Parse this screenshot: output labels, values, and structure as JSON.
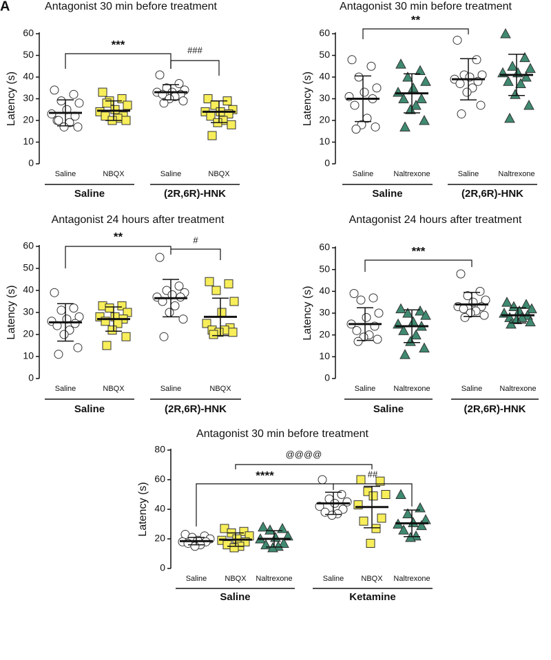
{
  "panel_label": "A",
  "chart_data": [
    {
      "type": "strip",
      "title": "Antagonist 30 min before treatment",
      "y_label": "Latency (s)",
      "ylim": [
        0,
        60
      ],
      "yticks": [
        0,
        10,
        20,
        30,
        40,
        50,
        60
      ],
      "groups": [
        {
          "name": "Saline",
          "categories": [
            {
              "name": "Saline",
              "marker": "circle",
              "color": "#ffffff",
              "values": [
                34,
                32,
                29,
                28,
                25,
                23,
                22,
                20,
                19,
                17,
                17,
                20
              ],
              "mean": 23.5,
              "sd": 6
            },
            {
              "name": "NBQX",
              "marker": "square",
              "color": "#f7ee5a",
              "values": [
                33,
                30,
                29,
                27,
                25,
                24,
                22,
                22,
                21,
                20,
                20,
                28
              ],
              "mean": 24.5,
              "sd": 4.5
            }
          ]
        },
        {
          "name": "(2R,6R)-HNK",
          "categories": [
            {
              "name": "Saline",
              "marker": "circle",
              "color": "#ffffff",
              "values": [
                41,
                37,
                35,
                34,
                33,
                33,
                32,
                32,
                31,
                30,
                29,
                28
              ],
              "mean": 33,
              "sd": 3.5
            },
            {
              "name": "NBQX",
              "marker": "square",
              "color": "#f7ee5a",
              "values": [
                30,
                29,
                27,
                25,
                24,
                24,
                23,
                22,
                20,
                19,
                18,
                13
              ],
              "mean": 24,
              "sd": 5
            }
          ]
        }
      ],
      "annotations": [
        "***",
        "###"
      ]
    },
    {
      "type": "strip",
      "title": "Antagonist 30 min before treatment",
      "y_label": "Latency (s)",
      "ylim": [
        0,
        60
      ],
      "yticks": [
        0,
        10,
        20,
        30,
        40,
        50,
        60
      ],
      "groups": [
        {
          "name": "Saline",
          "categories": [
            {
              "name": "Saline",
              "marker": "circle",
              "color": "#ffffff",
              "values": [
                48,
                45,
                40,
                35,
                33,
                31,
                30,
                27,
                21,
                18,
                17,
                16
              ],
              "mean": 30,
              "sd": 10.5
            },
            {
              "name": "Naltrexone",
              "marker": "triangle",
              "color": "#3f8a70",
              "values": [
                46,
                43,
                40,
                38,
                35,
                33,
                30,
                30,
                27,
                25,
                20,
                17
              ],
              "mean": 32.5,
              "sd": 9
            }
          ]
        },
        {
          "name": "(2R,6R)-HNK",
          "categories": [
            {
              "name": "Saline",
              "marker": "circle",
              "color": "#ffffff",
              "values": [
                57,
                48,
                41,
                41,
                40,
                39,
                38,
                37,
                35,
                33,
                27,
                23
              ],
              "mean": 39,
              "sd": 9.5
            },
            {
              "name": "Naltrexone",
              "marker": "triangle",
              "color": "#3f8a70",
              "values": [
                60,
                49,
                45,
                44,
                42,
                42,
                40,
                38,
                37,
                32,
                27,
                21
              ],
              "mean": 41,
              "sd": 9.5
            }
          ]
        }
      ],
      "annotations": [
        "**"
      ]
    },
    {
      "type": "strip",
      "title": "Antagonist 24 hours after treatment",
      "y_label": "Latency (s)",
      "ylim": [
        0,
        60
      ],
      "yticks": [
        0,
        10,
        20,
        30,
        40,
        50,
        60
      ],
      "groups": [
        {
          "name": "Saline",
          "categories": [
            {
              "name": "Saline",
              "marker": "circle",
              "color": "#ffffff",
              "values": [
                39,
                32,
                31,
                28,
                27,
                26,
                25,
                24,
                22,
                20,
                14,
                11
              ],
              "mean": 25.5,
              "sd": 8.5
            },
            {
              "name": "NBQX",
              "marker": "square",
              "color": "#f7ee5a",
              "values": [
                33,
                33,
                32,
                30,
                28,
                28,
                27,
                26,
                25,
                22,
                19,
                15
              ],
              "mean": 27,
              "sd": 5.5
            }
          ]
        },
        {
          "name": "(2R,6R)-HNK",
          "categories": [
            {
              "name": "Saline",
              "marker": "circle",
              "color": "#ffffff",
              "values": [
                55,
                42,
                40,
                39,
                38,
                37,
                37,
                35,
                33,
                30,
                27,
                19
              ],
              "mean": 36.5,
              "sd": 8.5
            },
            {
              "name": "NBQX",
              "marker": "square",
              "color": "#f7ee5a",
              "values": [
                44,
                43,
                40,
                35,
                30,
                25,
                23,
                22,
                22,
                21,
                21,
                20
              ],
              "mean": 28,
              "sd": 8.5
            }
          ]
        }
      ],
      "annotations": [
        "**",
        "#"
      ]
    },
    {
      "type": "strip",
      "title": "Antagonist 24 hours after treatment",
      "y_label": "Latency (s)",
      "ylim": [
        0,
        60
      ],
      "yticks": [
        0,
        10,
        20,
        30,
        40,
        50,
        60
      ],
      "groups": [
        {
          "name": "Saline",
          "categories": [
            {
              "name": "Saline",
              "marker": "circle",
              "color": "#ffffff",
              "values": [
                39,
                37,
                36,
                30,
                28,
                25,
                24,
                22,
                20,
                19,
                18,
                17
              ],
              "mean": 25,
              "sd": 7.5
            },
            {
              "name": "Naltrexone",
              "marker": "triangle",
              "color": "#3f8a70",
              "values": [
                32,
                31,
                30,
                29,
                26,
                25,
                24,
                22,
                20,
                17,
                14,
                11
              ],
              "mean": 24,
              "sd": 7.5
            }
          ]
        },
        {
          "name": "(2R,6R)-HNK",
          "categories": [
            {
              "name": "Saline",
              "marker": "circle",
              "color": "#ffffff",
              "values": [
                48,
                40,
                38,
                36,
                35,
                33,
                33,
                32,
                31,
                30,
                29,
                28
              ],
              "mean": 34,
              "sd": 5.5
            },
            {
              "name": "Naltrexone",
              "marker": "triangle",
              "color": "#3f8a70",
              "values": [
                35,
                34,
                33,
                32,
                31,
                30,
                29,
                28,
                28,
                27,
                26,
                25
              ],
              "mean": 29,
              "sd": 3.5
            }
          ]
        }
      ],
      "annotations": [
        "***"
      ]
    },
    {
      "type": "strip",
      "title": "Antagonist 30 min before treatment",
      "y_label": "Latency (s)",
      "ylim": [
        0,
        80
      ],
      "yticks": [
        0,
        20,
        40,
        60,
        80
      ],
      "groups": [
        {
          "name": "Saline",
          "categories": [
            {
              "name": "Saline",
              "marker": "circle",
              "color": "#ffffff",
              "values": [
                23,
                22,
                21,
                20,
                19,
                18,
                18,
                17,
                16,
                15
              ],
              "mean": 18.5,
              "sd": 2.5
            },
            {
              "name": "NBQX",
              "marker": "square",
              "color": "#f7ee5a",
              "values": [
                27,
                25,
                24,
                22,
                20,
                19,
                18,
                16,
                15,
                14
              ],
              "mean": 19.5,
              "sd": 4.5
            },
            {
              "name": "Naltrexone",
              "marker": "triangle",
              "color": "#3f8a70",
              "values": [
                28,
                27,
                26,
                22,
                21,
                20,
                17,
                16,
                15,
                14
              ],
              "mean": 20,
              "sd": 5.5
            }
          ]
        },
        {
          "name": "Ketamine",
          "categories": [
            {
              "name": "Saline",
              "marker": "circle",
              "color": "#ffffff",
              "values": [
                60,
                50,
                47,
                45,
                44,
                42,
                40,
                38,
                37,
                36
              ],
              "mean": 44,
              "sd": 7.5
            },
            {
              "name": "NBQX",
              "marker": "square",
              "color": "#f7ee5a",
              "values": [
                60,
                59,
                52,
                50,
                49,
                43,
                34,
                32,
                27,
                17
              ],
              "mean": 41.5,
              "sd": 14
            },
            {
              "name": "Naltrexone",
              "marker": "triangle",
              "color": "#3f8a70",
              "values": [
                50,
                41,
                37,
                33,
                31,
                30,
                29,
                26,
                22,
                21
              ],
              "mean": 30.5,
              "sd": 9
            }
          ]
        }
      ],
      "annotations": [
        "@@@@",
        "****",
        "##"
      ]
    }
  ]
}
